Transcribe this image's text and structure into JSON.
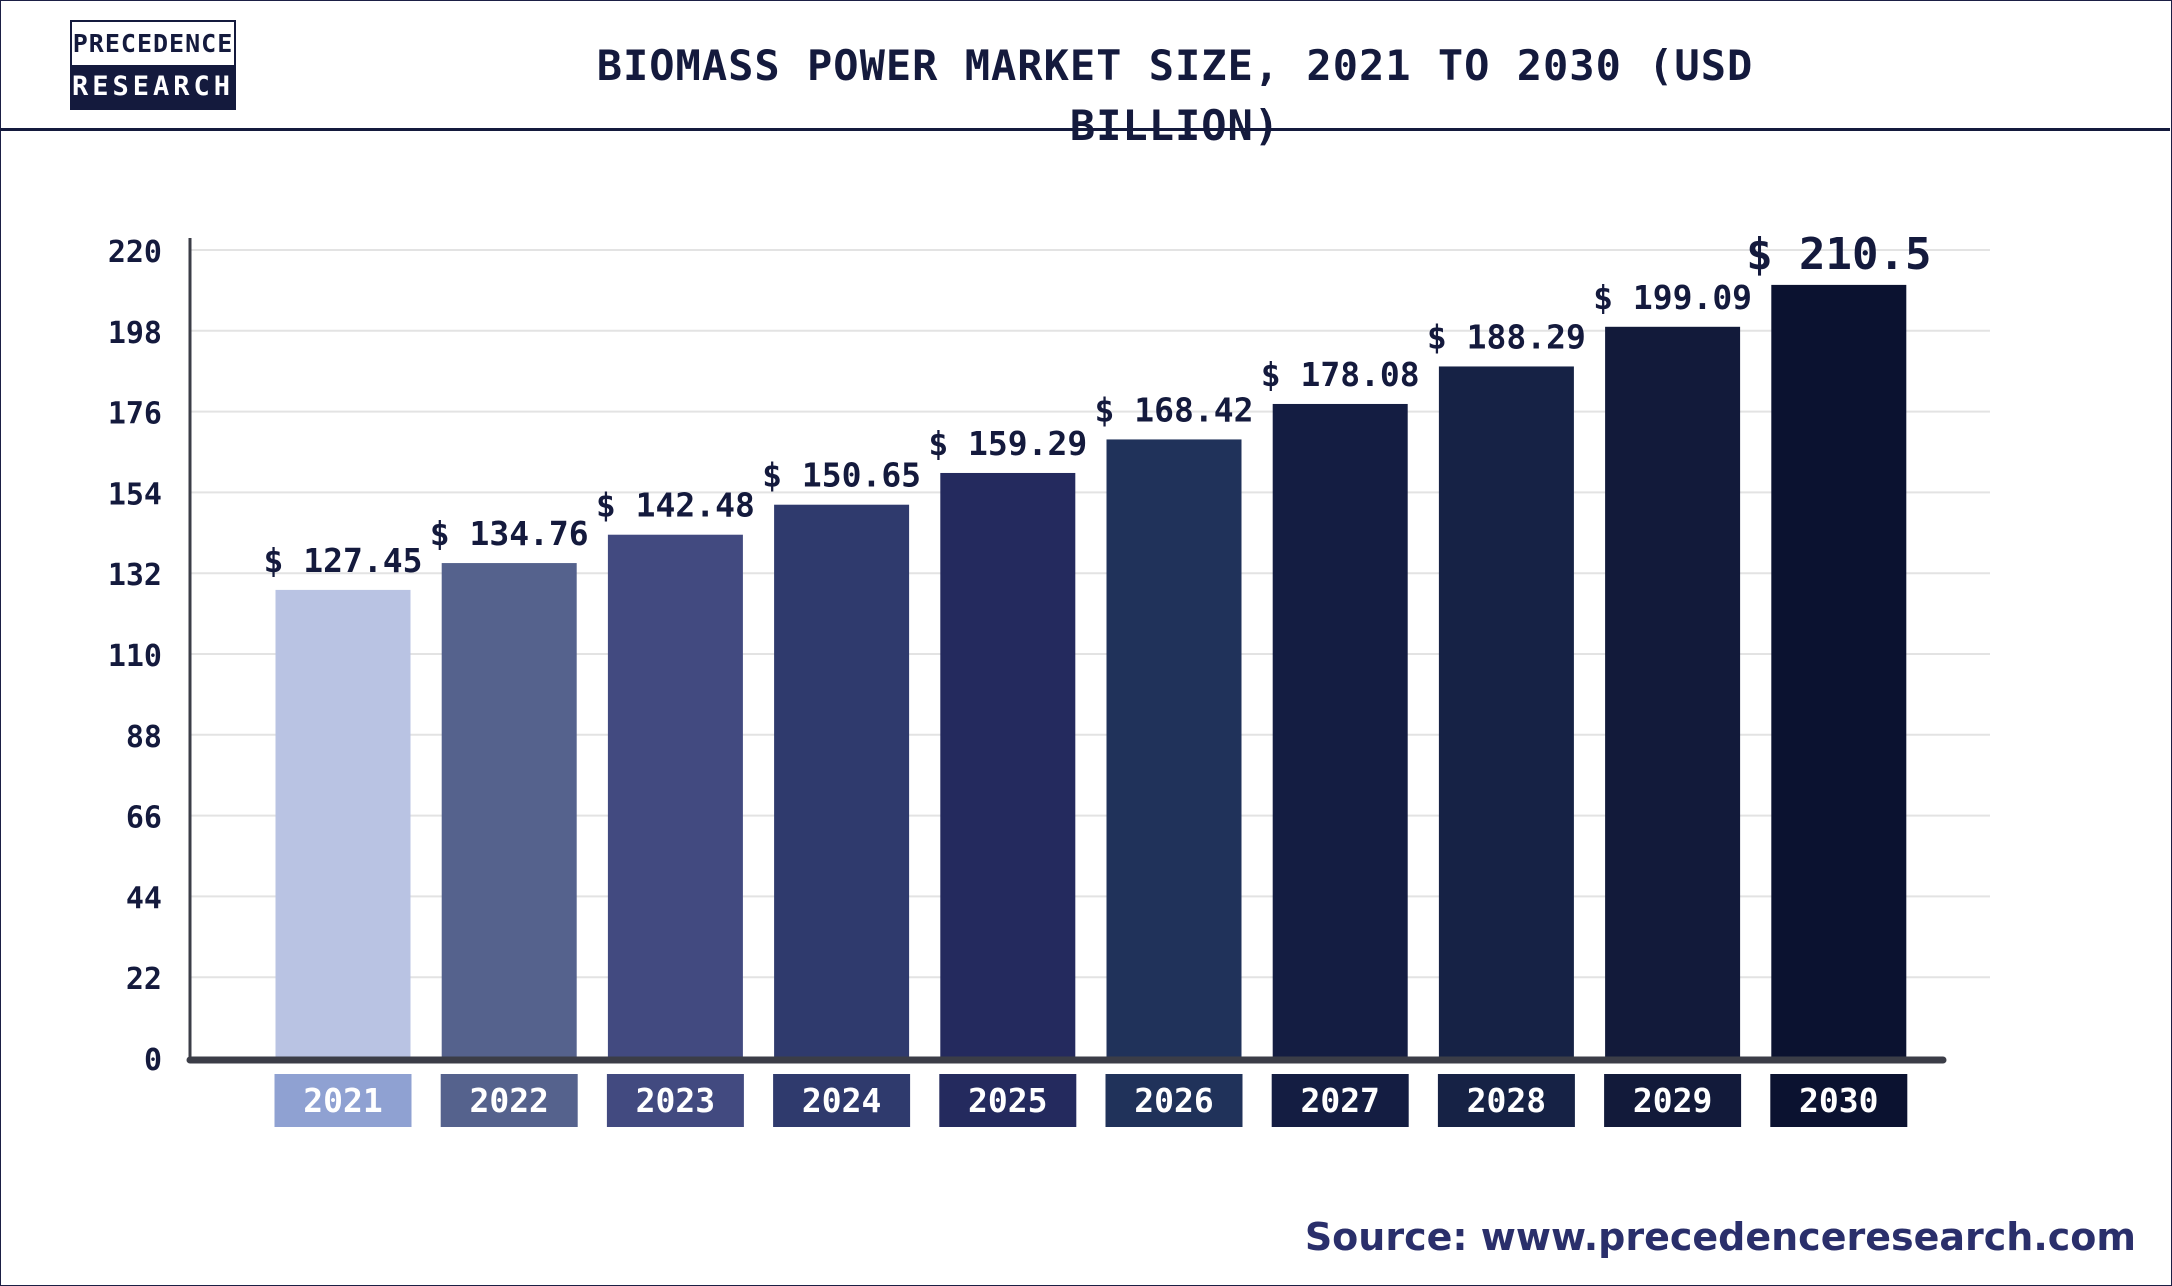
{
  "header": {
    "logo_line1": "PRECEDENCE",
    "logo_line2": "RESEARCH",
    "title": "BIOMASS POWER MARKET SIZE, 2021 TO 2030 (USD BILLION)"
  },
  "footer": {
    "source": "Source: www.precedenceresearch.com"
  },
  "colors": {
    "title": "#141a3d",
    "source": "#2a2f6b",
    "axis": "#3b3d47",
    "grid": "#e3e3e3"
  },
  "chart_data": {
    "type": "bar",
    "title": "BIOMASS POWER MARKET SIZE, 2021 TO 2030 (USD BILLION)",
    "categories": [
      "2021",
      "2022",
      "2023",
      "2024",
      "2025",
      "2026",
      "2027",
      "2028",
      "2029",
      "2030"
    ],
    "values": [
      127.45,
      134.76,
      142.48,
      150.65,
      159.29,
      168.42,
      178.08,
      188.29,
      199.09,
      210.5
    ],
    "value_labels": [
      "$ 127.45",
      "$ 134.76",
      "$ 142.48",
      "$ 150.65",
      "$ 159.29",
      "$ 168.42",
      "$ 178.08",
      "$ 188.29",
      "$ 199.09",
      "$ 210.5"
    ],
    "bar_colors": [
      "#b9c3e3",
      "#55628d",
      "#424a80",
      "#2f3a6d",
      "#242a5e",
      "#20325a",
      "#141d42",
      "#162245",
      "#121a3a",
      "#0b1230"
    ],
    "category_box_colors": [
      "#8fa1d2",
      "#55628d",
      "#424a80",
      "#2f3a6d",
      "#242a5e",
      "#20325a",
      "#141d42",
      "#162245",
      "#121a3a",
      "#0b1230"
    ],
    "yticks": [
      "0",
      "22",
      "44",
      "66",
      "88",
      "110",
      "132",
      "154",
      "176",
      "198",
      "220"
    ],
    "ylim": [
      0,
      220
    ],
    "xlabel": "",
    "ylabel": "",
    "grid": true,
    "legend": "none"
  }
}
